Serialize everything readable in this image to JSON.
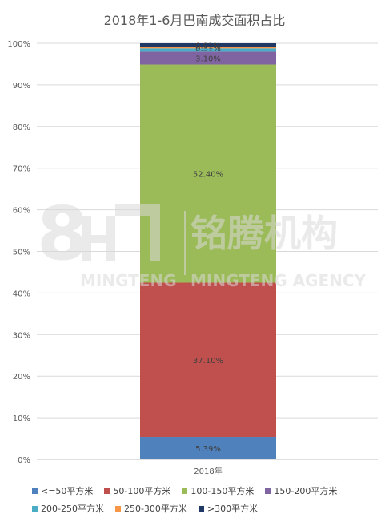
{
  "chart_data": {
    "type": "bar",
    "stacked": true,
    "title": "2018年1-6月巴南成交面积占比",
    "categories": [
      "2018年"
    ],
    "ylim": [
      0,
      100
    ],
    "yticks": [
      "0%",
      "10%",
      "20%",
      "30%",
      "40%",
      "50%",
      "60%",
      "70%",
      "80%",
      "90%",
      "100%"
    ],
    "grid": true,
    "legend_position": "bottom",
    "series": [
      {
        "name": "<=50平方米",
        "values": [
          5.39
        ],
        "label": "5.39%",
        "color": "#4f81bd"
      },
      {
        "name": "50-100平方米",
        "values": [
          37.1
        ],
        "label": "37.10%",
        "color": "#c0504d"
      },
      {
        "name": "100-150平方米",
        "values": [
          52.4
        ],
        "label": "52.40%",
        "color": "#9bbb59"
      },
      {
        "name": "150-200平方米",
        "values": [
          3.1
        ],
        "label": "3.10%",
        "color": "#8064a2"
      },
      {
        "name": "200-250平方米",
        "values": [
          0.8
        ],
        "label": "",
        "color": "#4bacc6"
      },
      {
        "name": "250-300平方米",
        "values": [
          0.3
        ],
        "label": "0.31%",
        "color": "#f79646"
      },
      {
        "name": ">300平方米",
        "values": [
          0.91
        ],
        "label": "0.91%",
        "color": "#1f3864"
      }
    ]
  },
  "watermark": {
    "logo_text": "铭腾机构",
    "brand_left": "MINGTENG",
    "brand_right": "MINGTENG AGENCY"
  }
}
